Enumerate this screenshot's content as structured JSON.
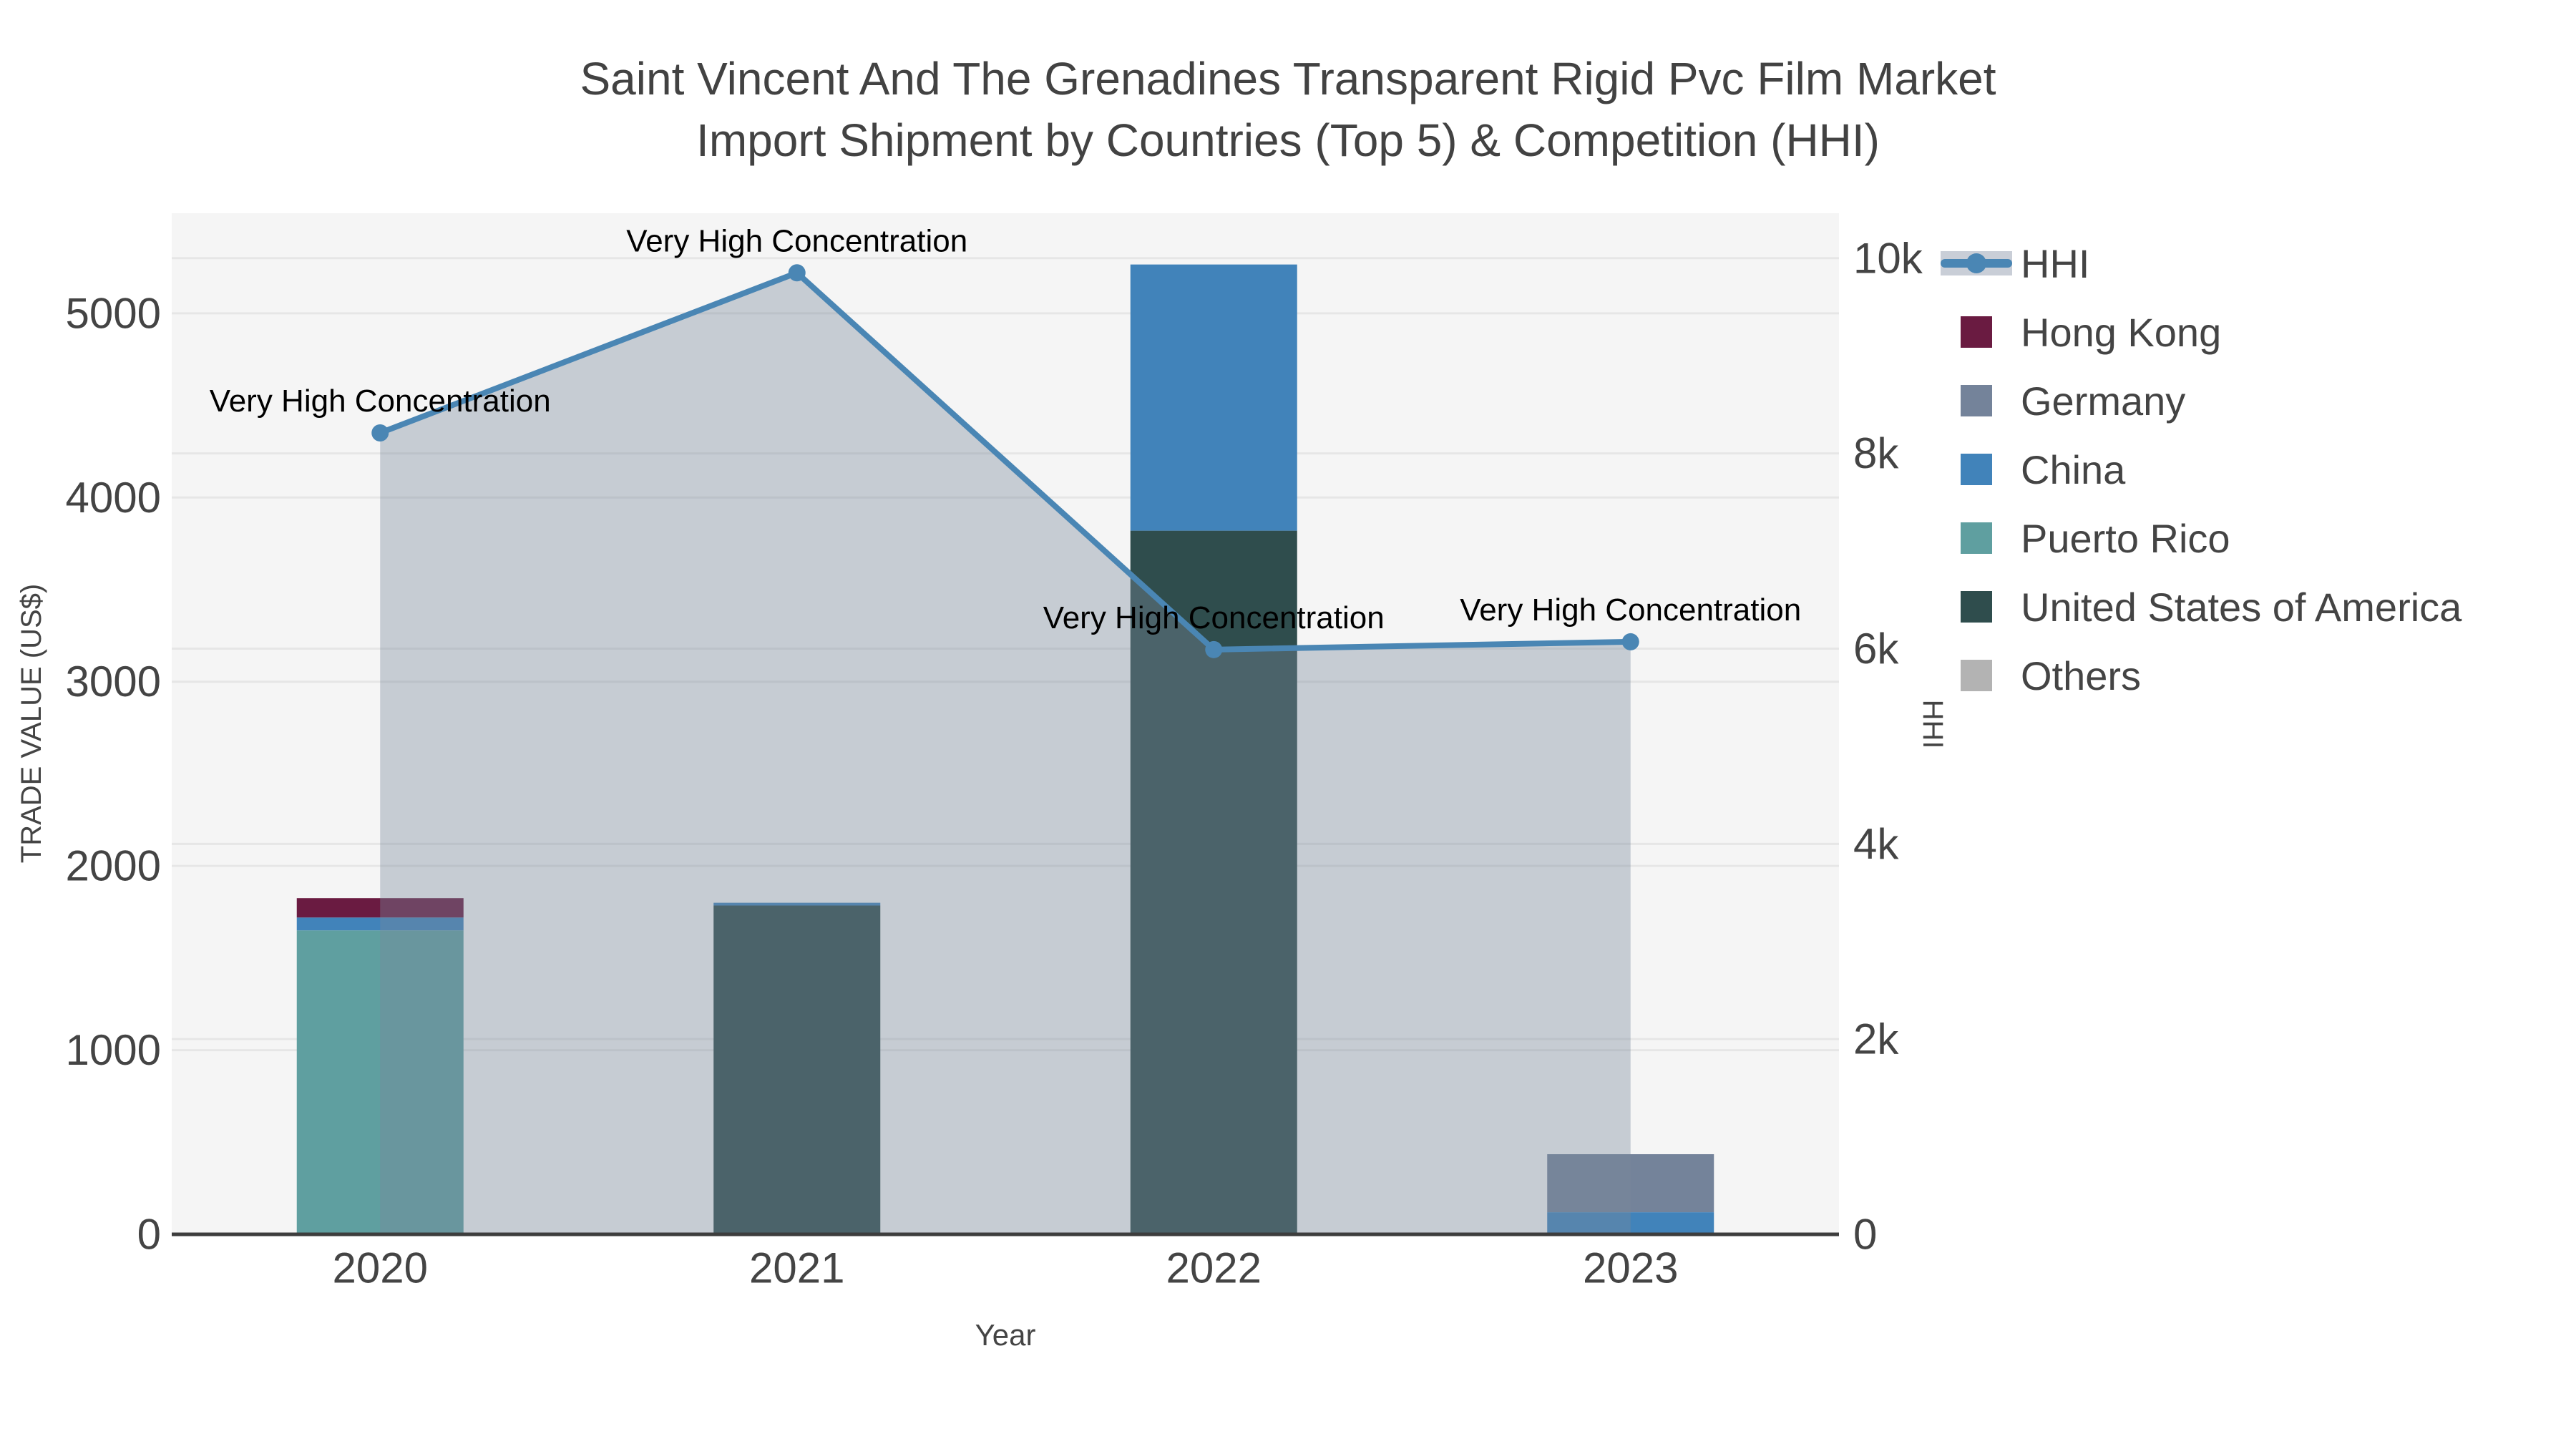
{
  "title": {
    "line1": "Saint Vincent And The Grenadines Transparent Rigid Pvc Film Market",
    "line2": "Import Shipment by Countries (Top 5) & Competition (HHI)"
  },
  "annotation_label": "Very High Concentration",
  "axes": {
    "x": {
      "title": "Year",
      "categories": [
        "2020",
        "2021",
        "2022",
        "2023"
      ]
    },
    "y_left": {
      "title": "TRADE VALUE (US$)",
      "tick_labels": [
        "0",
        "1000",
        "2000",
        "3000",
        "4000",
        "5000"
      ],
      "tick_values": [
        0,
        1000,
        2000,
        3000,
        4000,
        5000
      ]
    },
    "y_right": {
      "title": "HHI",
      "tick_labels": [
        "0",
        "2k",
        "4k",
        "6k",
        "8k",
        "10k"
      ],
      "tick_values": [
        0,
        2000,
        4000,
        6000,
        8000,
        10000
      ]
    }
  },
  "legend": {
    "items": [
      {
        "name": "HHI",
        "type": "line",
        "color": "#4a86b4"
      },
      {
        "name": "Hong Kong",
        "type": "swatch",
        "color": "#6a1b41"
      },
      {
        "name": "Germany",
        "type": "swatch",
        "color": "#74839a"
      },
      {
        "name": "China",
        "type": "swatch",
        "color": "#4183ba"
      },
      {
        "name": "Puerto Rico",
        "type": "swatch",
        "color": "#5f9fa0"
      },
      {
        "name": "United States of America",
        "type": "swatch",
        "color": "#2f4d4d"
      },
      {
        "name": "Others",
        "type": "swatch",
        "color": "#b3b3b3"
      }
    ]
  },
  "colors": {
    "plot_bg": "#f5f5f5",
    "grid": "#e6e6e6",
    "axis_line": "#3d3d3d",
    "area_fill": "rgba(120,136,155,0.38)",
    "hhi_line": "#4a86b4",
    "text": "#444444"
  },
  "chart_data": [
    {
      "type": "bar",
      "stacked": true,
      "categories": [
        "2020",
        "2021",
        "2022",
        "2023"
      ],
      "series": [
        {
          "name": "Hong Kong",
          "color": "#6a1b41",
          "values": [
            105,
            0,
            0,
            0
          ]
        },
        {
          "name": "Germany",
          "color": "#74839a",
          "values": [
            0,
            0,
            0,
            315
          ]
        },
        {
          "name": "China",
          "color": "#4183ba",
          "values": [
            70,
            15,
            1445,
            120
          ]
        },
        {
          "name": "Puerto Rico",
          "color": "#5f9fa0",
          "values": [
            1650,
            0,
            0,
            0
          ]
        },
        {
          "name": "United States of America",
          "color": "#2f4d4d",
          "values": [
            0,
            1785,
            3820,
            0
          ]
        },
        {
          "name": "Others",
          "color": "#b3b3b3",
          "values": [
            0,
            0,
            0,
            0
          ]
        }
      ],
      "stack_order_bottom_to_top": [
        "Others",
        "United States of America",
        "Puerto Rico",
        "China",
        "Germany",
        "Hong Kong"
      ],
      "xlabel": "Year",
      "ylabel": "TRADE VALUE (US$)",
      "ylim": [
        0,
        5550
      ],
      "grid": true,
      "legend_position": "right"
    },
    {
      "type": "line",
      "name": "HHI",
      "x": [
        "2020",
        "2021",
        "2022",
        "2023"
      ],
      "values": [
        8210,
        9850,
        5990,
        6070
      ],
      "color": "#4a86b4",
      "fill": "tozeroy",
      "fill_color": "rgba(120,136,155,0.38)",
      "markers": true,
      "ylabel": "HHI",
      "ylim": [
        0,
        10460
      ],
      "point_annotations": [
        "Very High Concentration",
        "Very High Concentration",
        "Very High Concentration",
        "Very High Concentration"
      ]
    }
  ]
}
